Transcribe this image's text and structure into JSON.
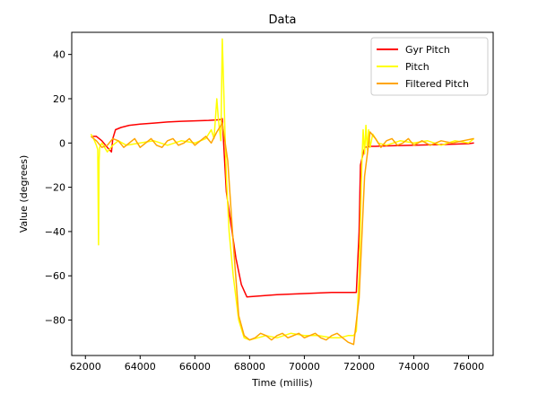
{
  "chart_data": {
    "type": "line",
    "title": "Data",
    "xlabel": "Time (millis)",
    "ylabel": "Value (degrees)",
    "xlim": [
      61500,
      76900
    ],
    "ylim": [
      -96,
      50
    ],
    "x_ticks": [
      62000,
      64000,
      66000,
      68000,
      70000,
      72000,
      74000,
      76000
    ],
    "x_tick_labels": [
      "62000",
      "64000",
      "66000",
      "68000",
      "70000",
      "72000",
      "74000",
      "76000"
    ],
    "y_ticks": [
      -80,
      -60,
      -40,
      -20,
      0,
      20,
      40
    ],
    "y_tick_labels": [
      "−80",
      "−60",
      "−40",
      "−20",
      "0",
      "20",
      "40"
    ],
    "grid": false,
    "legend_position": "top-right",
    "series": [
      {
        "name": "Gyr Pitch",
        "color": "#ff0000",
        "x": [
          62250,
          62400,
          62600,
          62800,
          62950,
          63000,
          63100,
          63300,
          63600,
          64000,
          64500,
          65000,
          65500,
          66000,
          66500,
          66900,
          67000,
          67050,
          67150,
          67300,
          67500,
          67700,
          67900,
          68500,
          69000,
          70000,
          71000,
          71900,
          72000,
          72050,
          72200,
          72400,
          72600,
          73000,
          74000,
          75000,
          76000,
          76200
        ],
        "y": [
          3,
          3,
          1,
          -2,
          -4,
          2,
          6,
          7,
          8,
          8.5,
          9,
          9.5,
          9.8,
          10,
          10.2,
          10.5,
          11,
          0,
          -22,
          -35,
          -52,
          -64,
          -69.5,
          -69,
          -68.5,
          -68,
          -67.5,
          -67.5,
          -40,
          -10,
          -2,
          -1.5,
          -1.5,
          -1.3,
          -1,
          -0.7,
          -0.3,
          0
        ]
      },
      {
        "name": "Pitch",
        "color": "#ffff00",
        "x": [
          62200,
          62300,
          62400,
          62450,
          62480,
          62500,
          62520,
          62600,
          62800,
          63000,
          63200,
          63500,
          64000,
          64500,
          65000,
          65500,
          66000,
          66400,
          66600,
          66700,
          66800,
          66850,
          66900,
          66950,
          67000,
          67050,
          67100,
          67150,
          67250,
          67400,
          67600,
          67800,
          68000,
          68300,
          68600,
          69000,
          69500,
          70000,
          70500,
          71000,
          71300,
          71600,
          71800,
          71900,
          72000,
          72100,
          72150,
          72200,
          72250,
          72300,
          72350,
          72400,
          72500,
          72700,
          73000,
          73500,
          74000,
          74500,
          75000,
          75500,
          76000,
          76200
        ],
        "y": [
          4,
          2,
          -1,
          -3,
          -46,
          -8,
          -2,
          0,
          -4,
          -1,
          1,
          -1,
          0,
          1,
          -1,
          1,
          0,
          2,
          6,
          2,
          20,
          12,
          6,
          1,
          47,
          26,
          5,
          -15,
          -40,
          -60,
          -80,
          -88,
          -89,
          -88,
          -87,
          -88,
          -86,
          -87,
          -87,
          -88,
          -88,
          -87,
          -87,
          -85,
          -60,
          -10,
          6,
          -5,
          8,
          -3,
          6,
          -2,
          4,
          0,
          -1,
          1,
          0,
          1,
          -1,
          1,
          0,
          2
        ]
      },
      {
        "name": "Filtered Pitch",
        "color": "#ffa500",
        "x": [
          62200,
          62400,
          62600,
          62800,
          63000,
          63200,
          63400,
          63600,
          63800,
          64000,
          64200,
          64400,
          64600,
          64800,
          65000,
          65200,
          65400,
          65600,
          65800,
          66000,
          66200,
          66400,
          66600,
          66800,
          67000,
          67200,
          67400,
          67600,
          67800,
          68000,
          68200,
          68400,
          68600,
          68800,
          69000,
          69200,
          69400,
          69600,
          69800,
          70000,
          70200,
          70400,
          70600,
          70800,
          71000,
          71200,
          71400,
          71600,
          71800,
          72000,
          72200,
          72400,
          72600,
          72800,
          73000,
          73200,
          73400,
          73600,
          73800,
          74000,
          74300,
          74600,
          75000,
          75400,
          75800,
          76200
        ],
        "y": [
          3,
          1,
          -2,
          -1,
          2,
          1,
          -2,
          0,
          2,
          -2,
          0,
          2,
          -1,
          -2,
          1,
          2,
          -1,
          0,
          2,
          -1,
          1,
          3,
          0,
          5,
          9,
          -8,
          -45,
          -78,
          -87,
          -89,
          -88,
          -86,
          -87,
          -89,
          -87,
          -86,
          -88,
          -87,
          -86,
          -88,
          -87,
          -86,
          -88,
          -89,
          -87,
          -86,
          -88,
          -90,
          -91,
          -70,
          -15,
          5,
          2,
          -2,
          1,
          2,
          -1,
          0,
          2,
          -1,
          1,
          -1,
          1,
          0,
          1,
          2
        ]
      }
    ]
  }
}
